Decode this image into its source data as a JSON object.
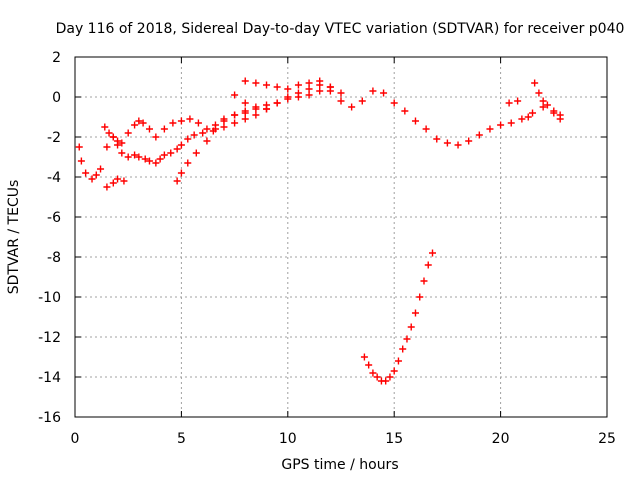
{
  "chart_data": {
    "type": "scatter",
    "title": "Day 116 of 2018, Sidereal Day-to-day VTEC variation (SDTVAR) for receiver p040",
    "xlabel": "GPS time / hours",
    "ylabel": "SDTVAR / TECUs",
    "xlim": [
      0,
      25
    ],
    "ylim": [
      -16,
      2
    ],
    "xticks": [
      0,
      5,
      10,
      15,
      20,
      25
    ],
    "xtick_labels": [
      "0",
      "5",
      "10",
      "15",
      "20",
      "25"
    ],
    "yticks": [
      2,
      0,
      -2,
      -4,
      -6,
      -8,
      -10,
      -12,
      -14,
      -16
    ],
    "ytick_labels": [
      "2",
      "0",
      "-2",
      "-4",
      "-6",
      "-8",
      "-10",
      "-12",
      "-14",
      "-16"
    ],
    "grid": true,
    "legend": "none",
    "marker": "plus",
    "color": "#ff0000",
    "series": [
      {
        "name": "main-track",
        "x": [
          0.2,
          0.3,
          0.5,
          0.8,
          1.0,
          1.2,
          1.5,
          1.8,
          2.0,
          2.2,
          2.5,
          2.8,
          3.0,
          3.3,
          3.5,
          3.8,
          4.0,
          4.2,
          4.5,
          4.8,
          5.0,
          5.3,
          5.6,
          6.0,
          6.5,
          7.0,
          7.5,
          8.0,
          8.5,
          9.0,
          9.5,
          10.0,
          10.5,
          11.0,
          11.5,
          12.0,
          12.5,
          13.0,
          13.5,
          14.0,
          14.5,
          15.0,
          15.5,
          16.0,
          16.5,
          17.0,
          17.5,
          18.0,
          18.5,
          19.0,
          19.5,
          20.0,
          20.5,
          21.0,
          21.5,
          22.0,
          22.5,
          22.8
        ],
        "y": [
          -2.5,
          -3.2,
          -3.8,
          -4.1,
          -3.9,
          -3.6,
          -2.5,
          -2.0,
          -2.4,
          -2.8,
          -3.0,
          -2.9,
          -3.0,
          -3.1,
          -3.2,
          -3.3,
          -3.1,
          -2.9,
          -2.8,
          -2.6,
          -2.4,
          -2.1,
          -1.9,
          -1.8,
          -1.7,
          -1.5,
          -1.3,
          -1.1,
          -0.9,
          -0.6,
          -0.3,
          0.0,
          0.2,
          0.4,
          0.6,
          0.3,
          -0.2,
          -0.5,
          -0.2,
          0.3,
          0.2,
          -0.3,
          -0.7,
          -1.2,
          -1.6,
          -2.1,
          -2.3,
          -2.4,
          -2.2,
          -1.9,
          -1.6,
          -1.4,
          -1.3,
          -1.1,
          -0.8,
          -0.5,
          -0.7,
          -0.9
        ]
      },
      {
        "name": "upper-band",
        "x": [
          1.4,
          1.6,
          1.8,
          2.0,
          2.2,
          2.5,
          2.8,
          3.0,
          3.2,
          3.5,
          3.8,
          4.2,
          4.6,
          5.0,
          5.4,
          5.8,
          6.2,
          6.6,
          7.0,
          7.5,
          8.0,
          8.5,
          9.0,
          9.5,
          10.0,
          10.5,
          11.0,
          11.5,
          12.0
        ],
        "y": [
          -1.5,
          -1.8,
          -2.0,
          -2.2,
          -2.3,
          -1.8,
          -1.4,
          -1.2,
          -1.3,
          -1.6,
          -2.0,
          -1.6,
          -1.3,
          -1.2,
          -1.1,
          -1.3,
          -1.6,
          -1.4,
          -1.1,
          -0.9,
          -0.7,
          -0.6,
          -0.4,
          -0.3,
          -0.1,
          0.0,
          0.1,
          0.3,
          0.5
        ]
      },
      {
        "name": "lower-band",
        "x": [
          1.5,
          1.8,
          2.0,
          2.3,
          4.8,
          5.0,
          5.3,
          5.7,
          6.2,
          6.6,
          7.0,
          7.5,
          8.0
        ],
        "y": [
          -4.5,
          -4.3,
          -4.1,
          -4.2,
          -4.2,
          -3.8,
          -3.3,
          -2.8,
          -2.2,
          -1.6,
          -1.2,
          -0.9,
          -0.8
        ]
      },
      {
        "name": "hump-band",
        "x": [
          8.0,
          8.5,
          9.0,
          9.5,
          10.0,
          10.5,
          11.0,
          11.5,
          12.0,
          12.5
        ],
        "y": [
          0.8,
          0.7,
          0.6,
          0.5,
          0.4,
          0.6,
          0.7,
          0.8,
          0.5,
          0.2
        ]
      },
      {
        "name": "dip-band",
        "x": [
          7.5,
          8.0,
          8.5,
          9.0
        ],
        "y": [
          0.1,
          -0.3,
          -0.5,
          -0.6
        ]
      },
      {
        "name": "right-spikes",
        "x": [
          20.4,
          20.8,
          21.3,
          21.6,
          21.8,
          22.0,
          22.2,
          22.5,
          22.8
        ],
        "y": [
          -0.3,
          -0.2,
          -1.0,
          0.7,
          0.2,
          -0.2,
          -0.4,
          -0.8,
          -1.1
        ]
      },
      {
        "name": "deep-dip",
        "x": [
          13.6,
          13.8,
          14.0,
          14.2,
          14.4,
          14.6,
          14.8,
          15.0,
          15.2,
          15.4,
          15.6,
          15.8,
          16.0,
          16.2,
          16.4,
          16.6,
          16.8
        ],
        "y": [
          -13.0,
          -13.4,
          -13.8,
          -14.0,
          -14.2,
          -14.2,
          -14.0,
          -13.7,
          -13.2,
          -12.6,
          -12.1,
          -11.5,
          -10.8,
          -10.0,
          -9.2,
          -8.4,
          -7.8
        ]
      }
    ]
  }
}
